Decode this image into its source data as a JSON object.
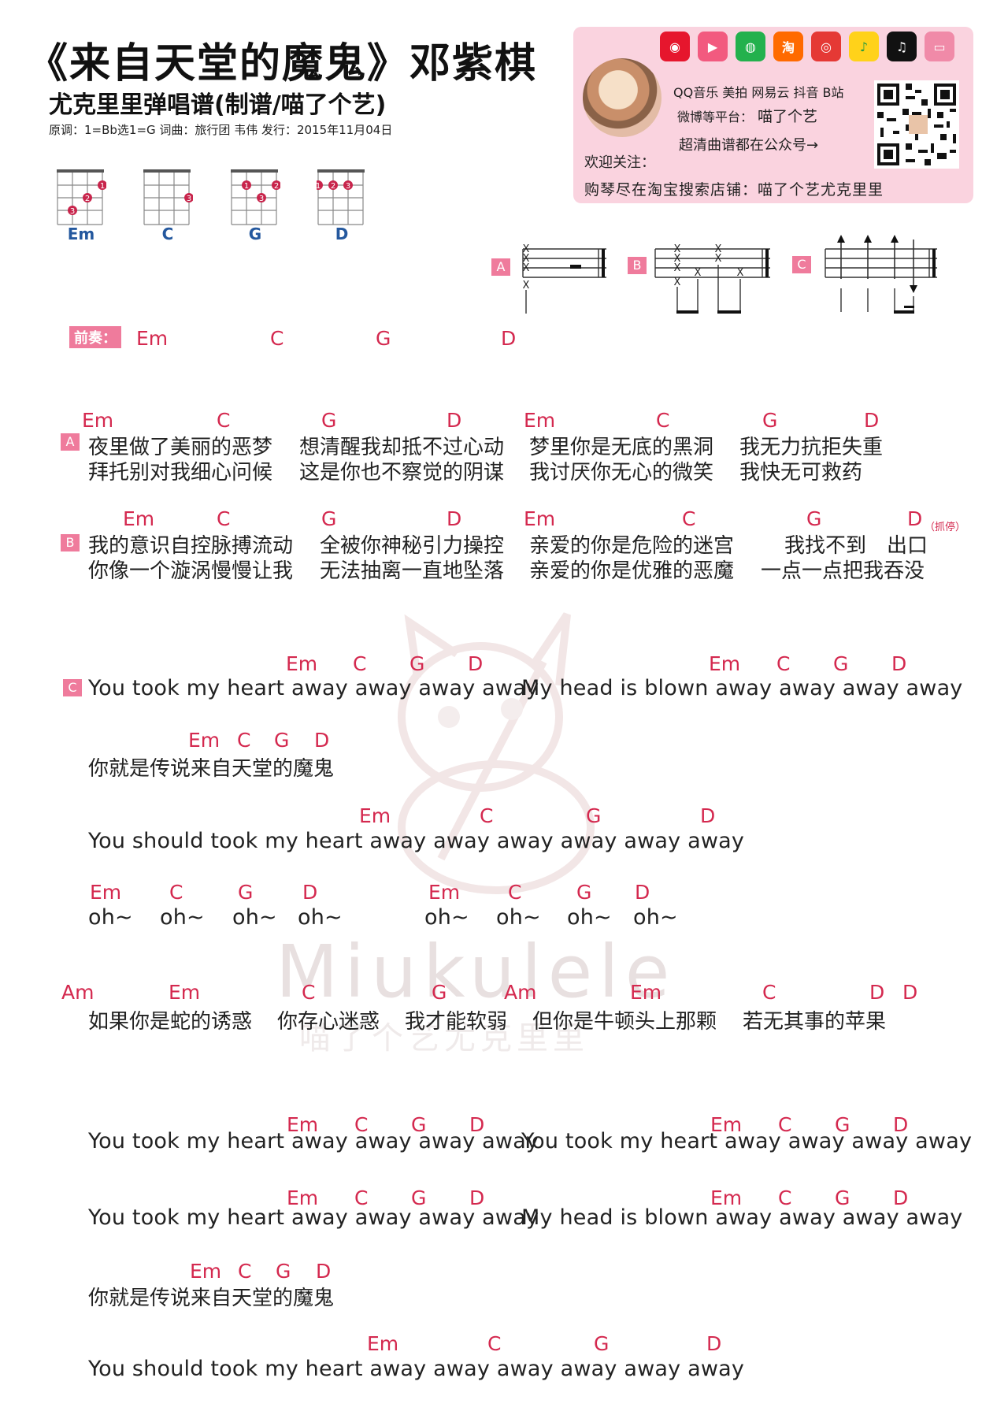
{
  "header": {
    "title": "《来自天堂的魔鬼》邓紫棋",
    "subtitle": "尤克里里弹唱谱(制谱/喵了个艺)",
    "meta": "原调：1=Bb选1=G    词曲：旅行团 韦伟  发行：2015年11月04日"
  },
  "follow": {
    "platforms": "QQ音乐 美拍 网易云 抖音 B站",
    "weibo_label": "微博等平台：",
    "weibo_name": "喵了个艺",
    "hd": "超清曲谱都在公众号→",
    "welcome": "欢迎关注：",
    "shop": "购琴尽在淘宝搜索店铺：喵了个艺尤克里里",
    "taobao_icon_text": "淘",
    "icons": [
      "weibo-icon",
      "meipai-icon",
      "wechat-icon",
      "taobao-icon",
      "netease-icon",
      "qqmusic-icon",
      "douyin-icon",
      "bilibili-icon"
    ]
  },
  "chords": [
    {
      "name": "Em",
      "dots": [
        "1",
        "2",
        "3"
      ]
    },
    {
      "name": "C",
      "dots": [
        "3"
      ]
    },
    {
      "name": "G",
      "dots": [
        "1",
        "2",
        "3"
      ]
    },
    {
      "name": "D",
      "dots": [
        "1",
        "2",
        "3"
      ]
    }
  ],
  "rhythm": {
    "a": "A",
    "b": "B",
    "c": "C",
    "x": "X"
  },
  "intro": {
    "label": "前奏：",
    "chords": [
      "Em",
      "C",
      "G",
      "D"
    ]
  },
  "section_a": {
    "tag": "A",
    "chords": [
      "Em",
      "C",
      "G",
      "D",
      "Em",
      "C",
      "G",
      "D"
    ],
    "line1": [
      "夜里做了美丽的恶梦",
      "想清醒我却抵不过心动",
      "梦里你是无底的黑洞",
      "我无力抗拒失重"
    ],
    "line2": [
      "拜托别对我细心问候",
      "这是你也不察觉的阴谋",
      "我讨厌你无心的微笑",
      "我快无可救药"
    ]
  },
  "section_b": {
    "tag": "B",
    "chords": [
      "Em",
      "C",
      "G",
      "D",
      "Em",
      "C",
      "G",
      "D"
    ],
    "note": "（抓停）",
    "line1": [
      "我的意识自控脉搏流动",
      "全被你神秘引力操控",
      "亲爱的你是危险的迷宫",
      "我找不到　出口"
    ],
    "line2": [
      "你像一个漩涡慢慢让我",
      "无法抽离一直地坠落",
      "亲爱的你是优雅的恶魔",
      "一点一点把我吞没"
    ]
  },
  "section_c": {
    "tag": "C",
    "c1_chords": [
      "Em",
      "C",
      "G",
      "D",
      "Em",
      "C",
      "G",
      "D"
    ],
    "c1_left": "You took my heart away away away away",
    "c1_right": "My head is blown away away away away",
    "c2_chords": [
      "Em",
      "C",
      "G",
      "D"
    ],
    "c2_lyric": "你就是传说来自天堂的魔鬼",
    "c3_chords": [
      "Em",
      "C",
      "G",
      "D"
    ],
    "c3_lyric": "You should took my heart away away away away away away",
    "oh_chords": [
      "Em",
      "C",
      "G",
      "D",
      "Em",
      "C",
      "G",
      "D"
    ],
    "oh_text": "oh~"
  },
  "bridge": {
    "chords": [
      "Am",
      "Em",
      "C",
      "G",
      "Am",
      "Em",
      "C",
      "D",
      "D"
    ],
    "lyrics": [
      "如果你是蛇的诱惑",
      "你存心迷惑",
      "我才能软弱",
      "但你是牛顿头上那颗",
      "若无其事的苹果"
    ]
  },
  "outro": {
    "r1_chords": [
      "Em",
      "C",
      "G",
      "D",
      "Em",
      "C",
      "G",
      "D"
    ],
    "r1_left": "You took my heart away away away away",
    "r1_right": "You took my heart away away away away",
    "r2_chords": [
      "Em",
      "C",
      "G",
      "D",
      "Em",
      "C",
      "G",
      "D"
    ],
    "r2_left": "You took my heart away away away away",
    "r2_right": "My head is blown away away away away",
    "r3_chords": [
      "Em",
      "C",
      "G",
      "D"
    ],
    "r3_lyric": "你就是传说来自天堂的魔鬼",
    "r4_chords": [
      "Em",
      "C",
      "G",
      "D"
    ],
    "r4_lyric": "You should took my heart away away away away away away"
  },
  "watermark": {
    "main": "Miukulele",
    "sub": "喵了个艺尤克里里"
  }
}
